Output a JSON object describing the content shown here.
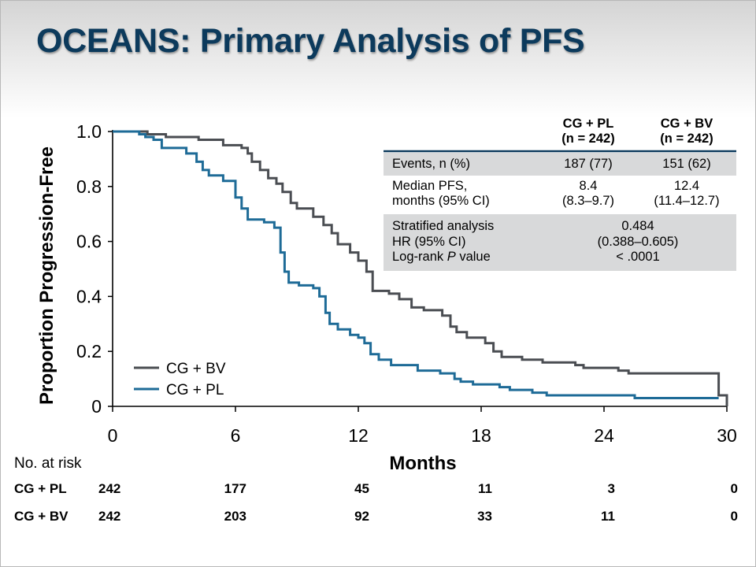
{
  "slide": {
    "title": "OCEANS: Primary Analysis of PFS"
  },
  "chart_data": {
    "type": "line",
    "xlabel": "Months",
    "ylabel": "Proportion Progression-Free",
    "xlim": [
      0,
      30
    ],
    "ylim": [
      0,
      1.0
    ],
    "x_ticks": [
      "0",
      "6",
      "12",
      "18",
      "24",
      "30"
    ],
    "y_ticks": [
      "0",
      "0.2",
      "0.4",
      "0.6",
      "0.8",
      "1.0"
    ],
    "legend_placement": "bottom-left",
    "series": [
      {
        "name": "CG + BV",
        "color": "#4a4d52",
        "step": true,
        "points": [
          [
            0,
            1.0
          ],
          [
            1.7,
            0.99
          ],
          [
            2.6,
            0.98
          ],
          [
            4.2,
            0.97
          ],
          [
            5.4,
            0.95
          ],
          [
            6.3,
            0.94
          ],
          [
            6.6,
            0.92
          ],
          [
            6.8,
            0.89
          ],
          [
            7.2,
            0.86
          ],
          [
            7.6,
            0.83
          ],
          [
            8.0,
            0.81
          ],
          [
            8.3,
            0.78
          ],
          [
            8.7,
            0.74
          ],
          [
            9.0,
            0.72
          ],
          [
            9.8,
            0.69
          ],
          [
            10.3,
            0.66
          ],
          [
            10.7,
            0.63
          ],
          [
            11.0,
            0.59
          ],
          [
            11.6,
            0.56
          ],
          [
            12.0,
            0.53
          ],
          [
            12.4,
            0.49
          ],
          [
            12.7,
            0.42
          ],
          [
            13.5,
            0.41
          ],
          [
            14.0,
            0.39
          ],
          [
            14.6,
            0.36
          ],
          [
            15.2,
            0.35
          ],
          [
            16.1,
            0.33
          ],
          [
            16.5,
            0.29
          ],
          [
            16.8,
            0.27
          ],
          [
            17.3,
            0.25
          ],
          [
            18.2,
            0.23
          ],
          [
            18.6,
            0.2
          ],
          [
            19.0,
            0.18
          ],
          [
            20.0,
            0.17
          ],
          [
            21.0,
            0.16
          ],
          [
            22.6,
            0.15
          ],
          [
            23.0,
            0.14
          ],
          [
            24.7,
            0.13
          ],
          [
            25.2,
            0.12
          ],
          [
            29.6,
            0.04
          ],
          [
            30.0,
            0.0
          ]
        ]
      },
      {
        "name": "CG + PL",
        "color": "#1e6b97",
        "step": true,
        "points": [
          [
            0,
            1.0
          ],
          [
            1.3,
            0.99
          ],
          [
            1.6,
            0.98
          ],
          [
            2.0,
            0.97
          ],
          [
            2.4,
            0.94
          ],
          [
            3.6,
            0.92
          ],
          [
            4.1,
            0.89
          ],
          [
            4.4,
            0.86
          ],
          [
            4.7,
            0.84
          ],
          [
            5.4,
            0.82
          ],
          [
            6.0,
            0.76
          ],
          [
            6.3,
            0.72
          ],
          [
            6.6,
            0.68
          ],
          [
            7.4,
            0.67
          ],
          [
            7.9,
            0.65
          ],
          [
            8.2,
            0.56
          ],
          [
            8.4,
            0.49
          ],
          [
            8.6,
            0.45
          ],
          [
            9.1,
            0.44
          ],
          [
            9.8,
            0.43
          ],
          [
            10.1,
            0.4
          ],
          [
            10.4,
            0.34
          ],
          [
            10.6,
            0.3
          ],
          [
            11.0,
            0.28
          ],
          [
            11.6,
            0.26
          ],
          [
            12.0,
            0.25
          ],
          [
            12.3,
            0.23
          ],
          [
            12.6,
            0.19
          ],
          [
            13.0,
            0.17
          ],
          [
            13.6,
            0.15
          ],
          [
            14.9,
            0.13
          ],
          [
            16.0,
            0.12
          ],
          [
            16.7,
            0.1
          ],
          [
            17.0,
            0.09
          ],
          [
            17.6,
            0.08
          ],
          [
            18.9,
            0.07
          ],
          [
            19.4,
            0.06
          ],
          [
            20.5,
            0.05
          ],
          [
            21.2,
            0.04
          ],
          [
            25.5,
            0.03
          ],
          [
            29.6,
            0.03
          ]
        ]
      }
    ]
  },
  "legend": {
    "bv_label": "CG + BV",
    "pl_label": "CG + PL"
  },
  "table": {
    "col_pl": "CG + PL",
    "col_pl_n": "(n = 242)",
    "col_bv": "CG + BV",
    "col_bv_n": "(n = 242)",
    "events_label": "Events, n (%)",
    "events_pl": "187 (77)",
    "events_bv": "151 (62)",
    "median_label_1": "Median PFS,",
    "median_label_2": "months (95% CI)",
    "median_pl": "8.4",
    "median_pl_ci": "(8.3–9.7)",
    "median_bv": "12.4",
    "median_bv_ci": "(11.4–12.7)",
    "strat_label": "Stratified analysis",
    "hr_label": "HR (95% CI)",
    "logrank_label": "Log-rank ",
    "logrank_p": "P",
    "logrank_tail": " value",
    "hr_value": "0.484",
    "hr_ci": "(0.388–0.605)",
    "p_value": "< .0001"
  },
  "risk_table": {
    "header": "No. at risk",
    "rows": [
      {
        "label": "CG + PL",
        "values": [
          "242",
          "177",
          "45",
          "11",
          "3",
          "0"
        ]
      },
      {
        "label": "CG + BV",
        "values": [
          "242",
          "203",
          "92",
          "33",
          "11",
          "0"
        ]
      }
    ]
  },
  "colors": {
    "title": "#0c3a5c",
    "bv": "#4a4d52",
    "pl": "#1e6b97",
    "table_shade": "#d8d9da",
    "table_rule": "#0c3a5c"
  }
}
